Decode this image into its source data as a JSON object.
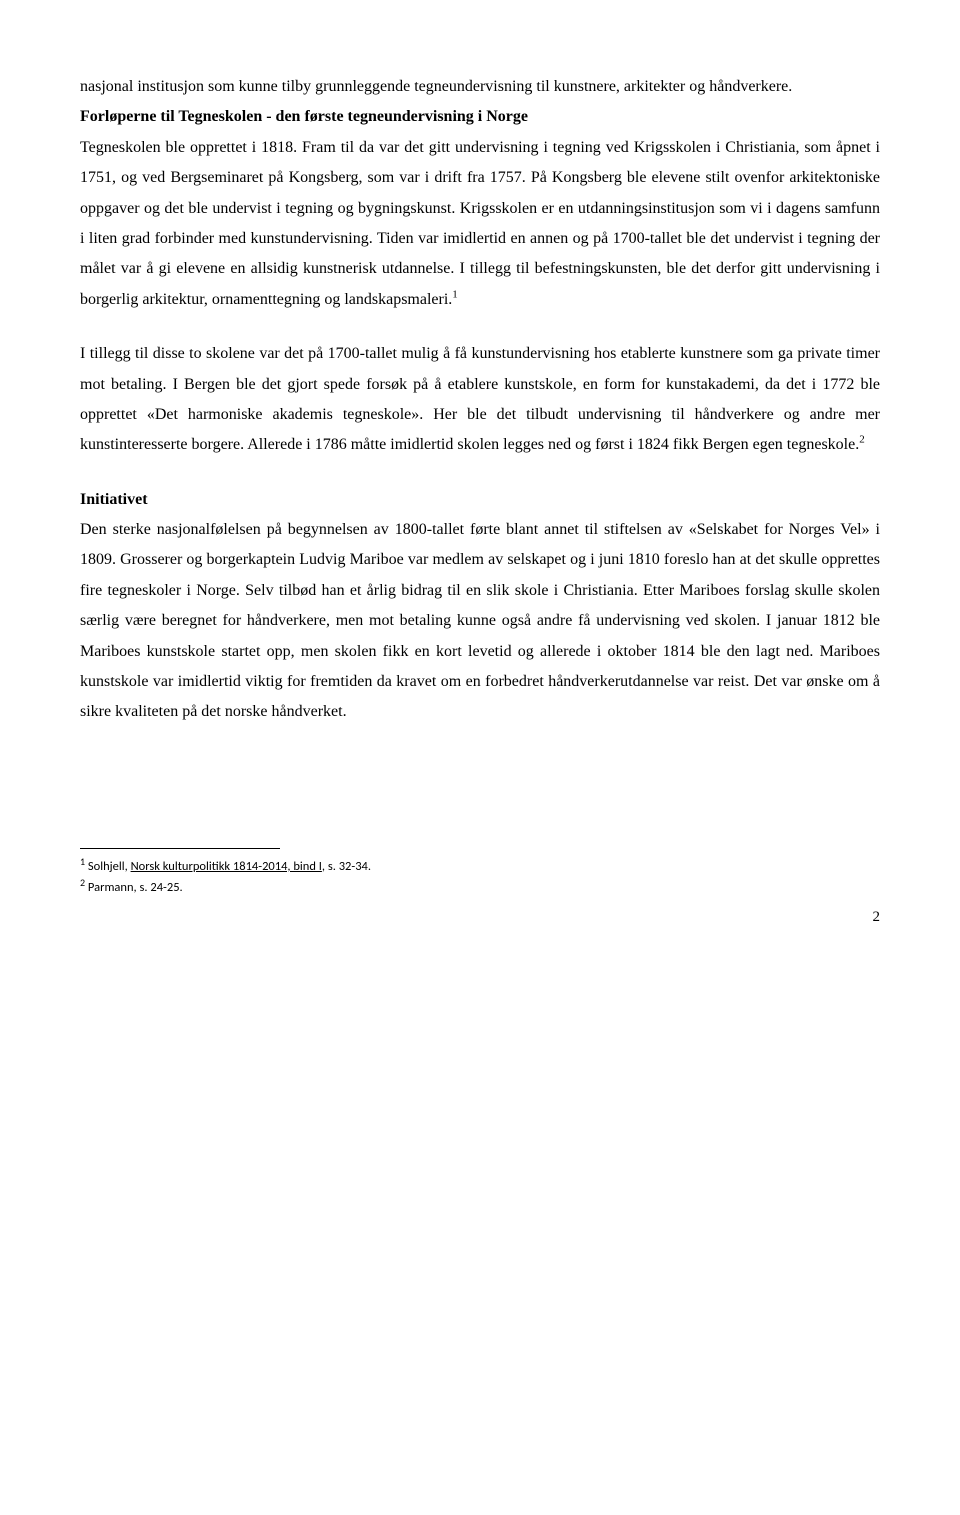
{
  "intro": {
    "text": "nasjonal institusjon som kunne tilby grunnleggende tegneundervisning til kunstnere, arkitekter og håndverkere."
  },
  "section1": {
    "heading": "Forløperne til Tegneskolen - den første tegneundervisning i Norge",
    "body_before_ref": "Tegneskolen ble opprettet i 1818. Fram til da var det gitt undervisning i tegning ved Krigsskolen i Christiania, som åpnet i 1751, og ved Bergseminaret på Kongsberg, som var i drift fra 1757. På Kongsberg ble elevene stilt ovenfor arkitektoniske oppgaver og det ble undervist i tegning og bygningskunst. Krigsskolen er en utdanningsinstitusjon som vi i dagens samfunn i liten grad forbinder med kunstundervisning. Tiden var imidlertid en annen og på 1700-tallet ble det undervist i tegning der målet var å gi elevene en allsidig kunstnerisk utdannelse. I tillegg til befestningskunsten, ble det derfor gitt undervisning i borgerlig arkitektur, ornamenttegning og landskapsmaleri.",
    "ref1": "1"
  },
  "para2": {
    "body_before_ref": "I tillegg til disse to skolene var det på 1700-tallet mulig å få kunstundervisning hos etablerte kunstnere som ga private timer mot betaling. I Bergen ble det gjort spede forsøk på å etablere kunstskole, en form for kunstakademi, da det i 1772 ble opprettet «Det harmoniske akademis tegneskole». Her ble det tilbudt undervisning til håndverkere og andre mer kunstinteresserte borgere. Allerede i 1786 måtte imidlertid skolen legges ned og først i 1824 fikk Bergen egen tegneskole.",
    "ref2": "2"
  },
  "section2": {
    "heading": "Initiativet",
    "body": "Den sterke nasjonalfølelsen på begynnelsen av 1800-tallet førte blant annet til stiftelsen av «Selskabet for Norges Vel» i 1809. Grosserer og borgerkaptein Ludvig Mariboe var medlem av selskapet og i juni 1810 foreslo han at det skulle opprettes fire tegneskoler i Norge. Selv tilbød han et årlig bidrag til en slik skole i Christiania. Etter Mariboes forslag skulle skolen særlig være beregnet for håndverkere, men mot betaling kunne også andre få undervisning ved skolen. I januar 1812 ble Mariboes kunstskole startet opp, men skolen fikk en kort levetid og allerede i oktober 1814 ble den lagt ned. Mariboes kunstskole var imidlertid viktig for fremtiden da kravet om en forbedret håndverkerutdannelse var reist. Det var ønske om å sikre kvaliteten på det norske håndverket."
  },
  "footnotes": {
    "fn1_num": "1",
    "fn1_text_before": " Solhjell, ",
    "fn1_underlined": "Norsk kulturpolitikk 1814-2014, bind I",
    "fn1_text_after": ", s. 32-34.",
    "fn2_num": "2",
    "fn2_text": " Parmann, s. 24-25."
  },
  "page_number": "2"
}
